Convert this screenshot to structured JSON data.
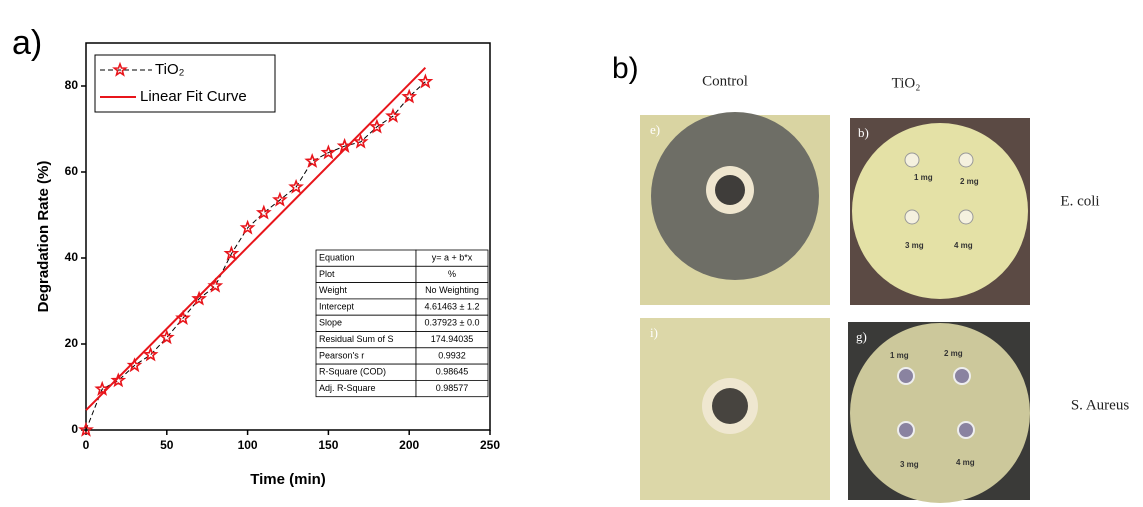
{
  "chart_data": {
    "type": "line",
    "panel_label": "a)",
    "x_label": "Time (min)",
    "y_label": "Degradation Rate (%)",
    "xlim": [
      0,
      250
    ],
    "xticks": [
      0,
      50,
      100,
      150,
      200,
      250
    ],
    "ylim": [
      0,
      90
    ],
    "yticks": [
      0,
      20,
      40,
      60,
      80
    ],
    "series": [
      {
        "name": "TiO₂",
        "color": "#e8151b",
        "marker": "star",
        "x": [
          0,
          10,
          20,
          30,
          40,
          50,
          60,
          70,
          80,
          90,
          100,
          110,
          120,
          130,
          140,
          150,
          160,
          170,
          180,
          190,
          200,
          210
        ],
        "values": [
          0,
          9.5,
          11.5,
          15,
          17.5,
          21.5,
          26,
          30.5,
          33.5,
          41,
          47,
          50.5,
          53.5,
          56.5,
          62.5,
          64.5,
          66,
          67,
          70.5,
          73,
          77.5,
          81
        ]
      },
      {
        "name": "Linear Fit Curve",
        "color": "#e8151b",
        "x": [
          0,
          210
        ],
        "values": [
          4.61,
          84.25
        ]
      }
    ],
    "table": [
      [
        "Equation",
        "y= a + b*x"
      ],
      [
        "Plot",
        "%"
      ],
      [
        "Weight",
        "No Weighting"
      ],
      [
        "Intercept",
        "4.61463 ± 1.2"
      ],
      [
        "Slope",
        "0.37923 ± 0.0"
      ],
      [
        "Residual Sum of S",
        "174.94035"
      ],
      [
        "Pearson's r",
        "0.9932"
      ],
      [
        "R-Square (COD)",
        "0.98645"
      ],
      [
        "Adj. R-Square",
        "0.98577"
      ]
    ]
  },
  "panel_b": {
    "label": "b)",
    "columns": [
      "Control",
      "TiO₂"
    ],
    "rows": [
      "E. coli",
      "S. Aureus"
    ],
    "photos": [
      {
        "label": "e)"
      },
      {
        "label": "b)",
        "doses": [
          "1 mg",
          "2 mg",
          "3 mg",
          "4 mg"
        ]
      },
      {
        "label": "i)"
      },
      {
        "label": "g)",
        "doses": [
          "1 mg",
          "2 mg",
          "3 mg",
          "4 mg"
        ]
      }
    ]
  }
}
